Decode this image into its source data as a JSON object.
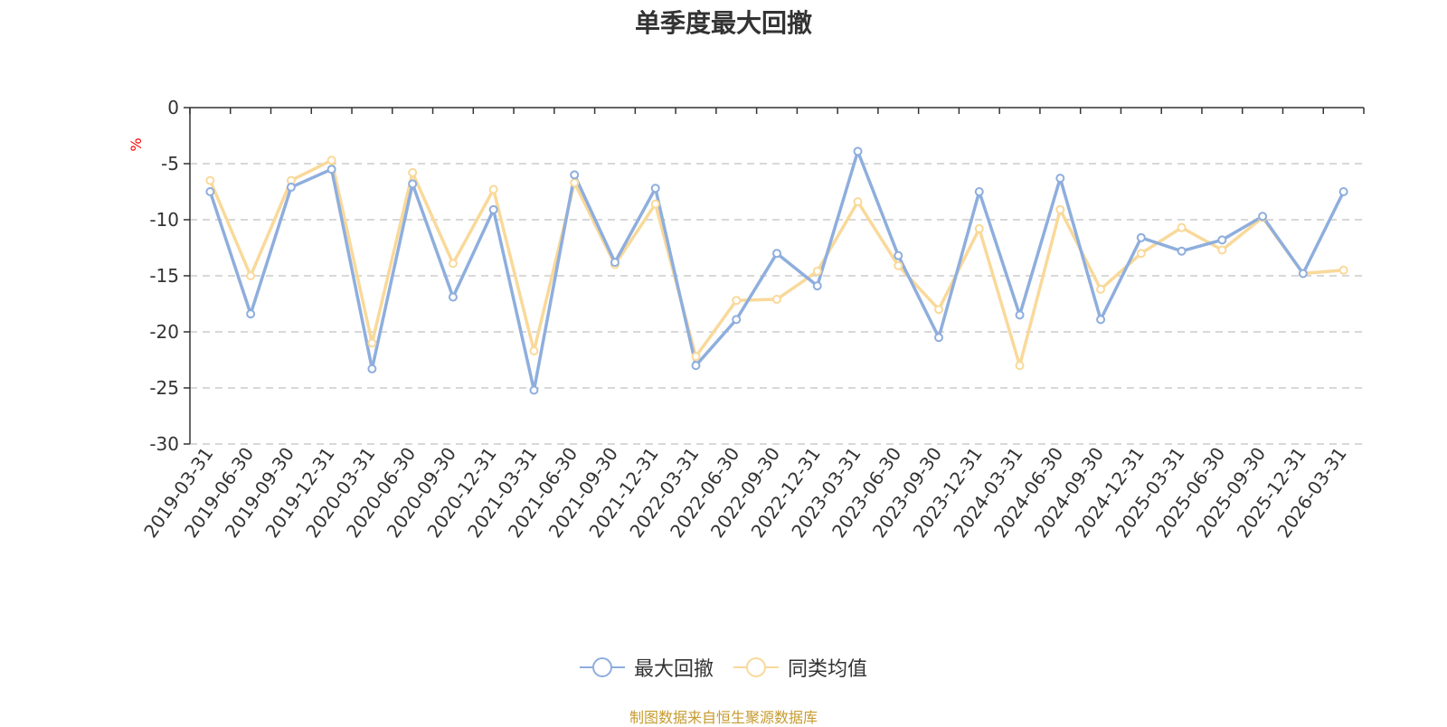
{
  "chart_data": {
    "type": "line",
    "title": "单季度最大回撤",
    "ylabel": "%",
    "xlabel": "",
    "ylim": [
      -30,
      0
    ],
    "yticks": [
      0,
      -5,
      -10,
      -15,
      -20,
      -25,
      -30
    ],
    "grid": true,
    "legend_position": "bottom-center",
    "x": [
      "2019-03-31",
      "2019-06-30",
      "2019-09-30",
      "2019-12-31",
      "2020-03-31",
      "2020-06-30",
      "2020-09-30",
      "2020-12-31",
      "2021-03-31",
      "2021-06-30",
      "2021-09-30",
      "2021-12-31",
      "2022-03-31",
      "2022-06-30",
      "2022-09-30",
      "2022-12-31",
      "2023-03-31",
      "2023-06-30",
      "2023-09-30",
      "2023-12-31",
      "2024-03-31",
      "2024-06-30",
      "2024-09-30",
      "2024-12-31",
      "2025-03-31",
      "2025-06-30",
      "2025-09-30",
      "2025-12-31",
      "2026-03-31"
    ],
    "series": [
      {
        "name": "最大回撤",
        "color": "#8eaedd",
        "values": [
          -7.5,
          -18.4,
          -7.1,
          -5.5,
          -23.3,
          -6.8,
          -16.9,
          -9.1,
          -25.2,
          -6.0,
          -13.8,
          -7.2,
          -23.0,
          -18.9,
          -13.0,
          -15.9,
          -3.9,
          -13.2,
          -20.5,
          -7.5,
          -18.5,
          -6.3,
          -18.9,
          -11.6,
          -12.8,
          -11.8,
          -9.7,
          -14.8,
          -7.5
        ]
      },
      {
        "name": "同类均值",
        "color": "#f9d99a",
        "values": [
          -6.5,
          -15.0,
          -6.5,
          -4.7,
          -21.0,
          -5.8,
          -13.9,
          -7.3,
          -21.7,
          -6.7,
          -14.0,
          -8.6,
          -22.2,
          -17.2,
          -17.1,
          -14.6,
          -8.4,
          -14.1,
          -18.0,
          -10.8,
          -23.0,
          -9.1,
          -16.2,
          -13.0,
          -10.7,
          -12.7,
          -9.8,
          -14.8,
          -14.5
        ]
      }
    ]
  },
  "footer": "制图数据来自恒生聚源数据库"
}
